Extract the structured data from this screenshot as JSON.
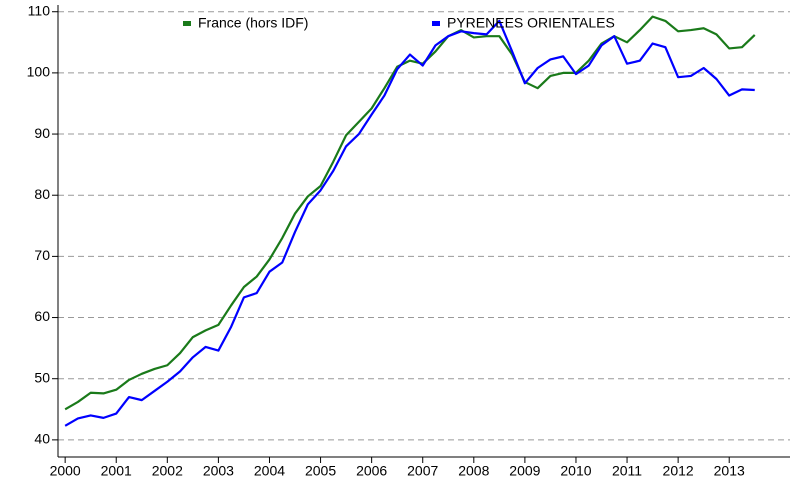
{
  "chart_data": {
    "type": "line",
    "x": [
      2000,
      2000.25,
      2000.5,
      2000.75,
      2001,
      2001.25,
      2001.5,
      2001.75,
      2002,
      2002.25,
      2002.5,
      2002.75,
      2003,
      2003.25,
      2003.5,
      2003.75,
      2004,
      2004.25,
      2004.5,
      2004.75,
      2005,
      2005.25,
      2005.5,
      2005.75,
      2006,
      2006.25,
      2006.5,
      2006.75,
      2007,
      2007.25,
      2007.5,
      2007.75,
      2008,
      2008.25,
      2008.5,
      2008.75,
      2009,
      2009.25,
      2009.5,
      2009.75,
      2010,
      2010.25,
      2010.5,
      2010.75,
      2011,
      2011.25,
      2011.5,
      2011.75,
      2012,
      2012.25,
      2012.5,
      2012.75,
      2013,
      2013.25,
      2013.5
    ],
    "series": [
      {
        "name": "France (hors IDF)",
        "color": "#1a7a1a",
        "values": [
          45,
          46.2,
          47.7,
          47.6,
          48.2,
          49.8,
          50.8,
          51.6,
          52.2,
          54.2,
          56.8,
          57.9,
          58.8,
          62,
          65,
          66.7,
          69.5,
          73,
          77,
          79.8,
          81.5,
          85.5,
          89.8,
          92,
          94.2,
          97.5,
          101,
          102,
          101.5,
          103.5,
          106,
          107,
          105.8,
          106,
          106,
          103,
          98.5,
          97.5,
          99.5,
          100,
          100,
          102,
          104.8,
          106,
          105,
          107,
          109.2,
          108.5,
          106.8,
          107,
          107.3,
          106.3,
          104,
          104.2,
          106.2
        ]
      },
      {
        "name": "PYRENEES ORIENTALES",
        "color": "#0000ff",
        "values": [
          42.3,
          43.5,
          44,
          43.6,
          44.3,
          47,
          46.5,
          48,
          49.5,
          51.2,
          53.5,
          55.2,
          54.6,
          58.5,
          63.3,
          64,
          67.5,
          69,
          74,
          78.5,
          80.8,
          84,
          88,
          90,
          93.2,
          96.3,
          100.6,
          103,
          101.2,
          104.5,
          106,
          106.8,
          106.5,
          106.3,
          108.5,
          103.5,
          98.3,
          100.8,
          102.2,
          102.7,
          99.8,
          101.2,
          104.5,
          106,
          101.5,
          102,
          104.8,
          104.2,
          99.3,
          99.5,
          100.8,
          99,
          96.3,
          97.3,
          97.2
        ]
      }
    ],
    "xlim": [
      1999.86,
      2014.19
    ],
    "xticks": [
      2000,
      2001,
      2002,
      2003,
      2004,
      2005,
      2006,
      2007,
      2008,
      2009,
      2010,
      2011,
      2012,
      2013
    ],
    "ylim": [
      37.2,
      111.1
    ],
    "yticks": [
      40,
      50,
      60,
      70,
      80,
      90,
      100,
      110
    ],
    "grid": true,
    "legend": "top"
  }
}
